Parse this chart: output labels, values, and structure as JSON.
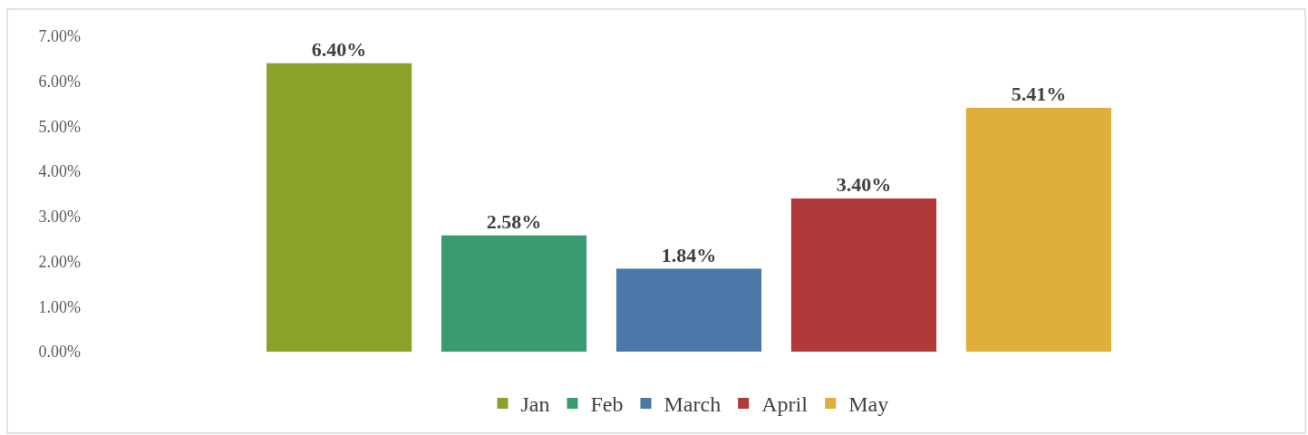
{
  "chart_data": {
    "type": "bar",
    "categories": [
      null
    ],
    "series": [
      {
        "name": "Jan",
        "color": "#8aa229",
        "values": [
          6.4
        ],
        "value_labels": [
          "6.40%"
        ]
      },
      {
        "name": "Feb",
        "color": "#3a9a70",
        "values": [
          2.58
        ],
        "value_labels": [
          "2.58%"
        ]
      },
      {
        "name": "March",
        "color": "#4a78a8",
        "values": [
          1.84
        ],
        "value_labels": [
          "1.84%"
        ]
      },
      {
        "name": "April",
        "color": "#b0393a",
        "values": [
          3.4
        ],
        "value_labels": [
          "3.40%"
        ]
      },
      {
        "name": "May",
        "color": "#e0ae3a",
        "values": [
          5.41
        ],
        "value_labels": [
          "5.41%"
        ]
      }
    ],
    "ylim": [
      0,
      7
    ],
    "yticks": [
      {
        "value": 0,
        "label": "0.00%"
      },
      {
        "value": 1,
        "label": "1.00%"
      },
      {
        "value": 2,
        "label": "2.00%"
      },
      {
        "value": 3,
        "label": "3.00%"
      },
      {
        "value": 4,
        "label": "4.00%"
      },
      {
        "value": 5,
        "label": "5.00%"
      },
      {
        "value": 6,
        "label": "6.00%"
      },
      {
        "value": 7,
        "label": "7.00%"
      }
    ],
    "legend": "bottom"
  }
}
